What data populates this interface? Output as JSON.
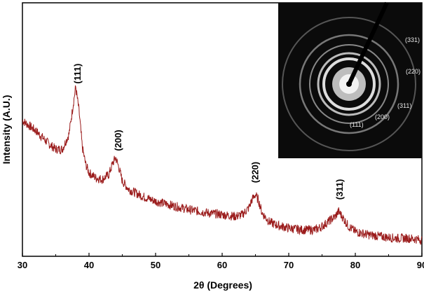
{
  "chart_data": {
    "type": "line",
    "title": "",
    "xlabel": "2θ (Degrees)",
    "ylabel": "Intensity (A.U.)",
    "xlim": [
      30,
      90
    ],
    "x_ticks": [
      30,
      40,
      50,
      60,
      70,
      80,
      90
    ],
    "x_tick_labels": [
      "30",
      "40",
      "50",
      "60",
      "70",
      "80",
      "90"
    ],
    "y_ticks_shown": false,
    "line_color": "#9b1c1c",
    "series": [
      {
        "x": [
          30,
          31,
          32,
          33,
          34,
          35,
          36,
          37,
          37.5,
          38,
          38.5,
          39,
          39.5,
          40,
          41,
          42,
          43,
          43.5,
          44,
          44.5,
          45,
          46,
          47,
          48,
          50,
          52,
          55,
          58,
          60,
          62,
          63,
          64,
          64.5,
          65,
          65.5,
          66,
          67,
          68,
          70,
          72,
          74,
          75,
          76,
          77,
          77.5,
          78,
          79,
          80,
          82,
          84,
          86,
          88,
          90
        ],
        "y": [
          0.72,
          0.69,
          0.66,
          0.62,
          0.58,
          0.55,
          0.55,
          0.64,
          0.78,
          0.92,
          0.78,
          0.56,
          0.46,
          0.41,
          0.38,
          0.37,
          0.4,
          0.46,
          0.5,
          0.44,
          0.36,
          0.31,
          0.29,
          0.27,
          0.24,
          0.22,
          0.19,
          0.17,
          0.16,
          0.15,
          0.16,
          0.2,
          0.25,
          0.28,
          0.24,
          0.17,
          0.12,
          0.1,
          0.08,
          0.07,
          0.07,
          0.09,
          0.12,
          0.15,
          0.18,
          0.15,
          0.09,
          0.06,
          0.04,
          0.03,
          0.02,
          0.02,
          0.01
        ]
      }
    ],
    "peaks": [
      {
        "label": "(111)",
        "x": 38.2
      },
      {
        "label": "(200)",
        "x": 44.3
      },
      {
        "label": "(220)",
        "x": 64.9
      },
      {
        "label": "(311)",
        "x": 77.6
      }
    ],
    "inset": {
      "type": "image",
      "description_labels": [
        "(331)",
        "(220)",
        "(311)",
        "(200)",
        "(111)"
      ]
    }
  }
}
